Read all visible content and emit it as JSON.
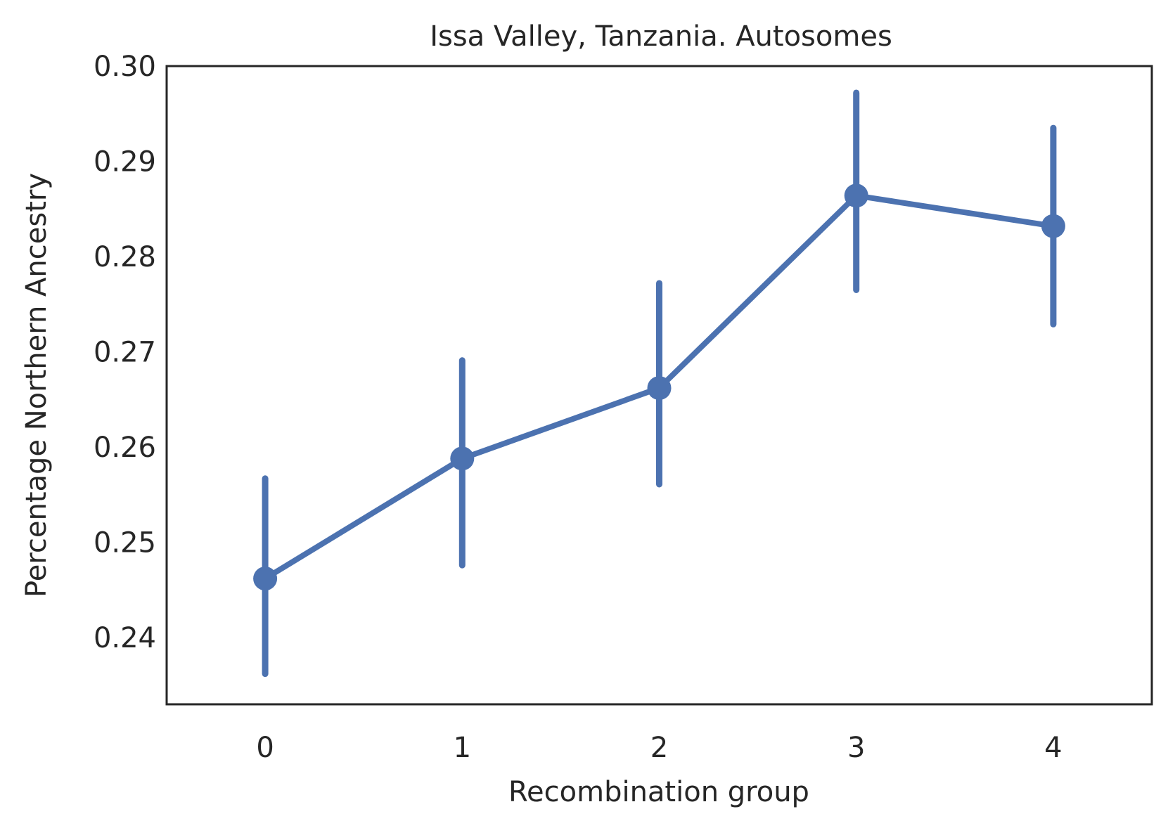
{
  "chart_data": {
    "type": "line",
    "title": "Issa Valley, Tanzania. Autosomes",
    "xlabel": "Recombination group",
    "ylabel": "Percentage Northern Ancestry",
    "categories": [
      "0",
      "1",
      "2",
      "3",
      "4"
    ],
    "y_ticks": [
      "0.24",
      "0.25",
      "0.26",
      "0.27",
      "0.28",
      "0.29",
      "0.30"
    ],
    "ylim": [
      0.233,
      0.3
    ],
    "series": [
      {
        "values": [
          0.2462,
          0.2588,
          0.2662,
          0.2864,
          0.2832
        ],
        "ci_low": [
          0.2362,
          0.2476,
          0.2561,
          0.2765,
          0.2729
        ],
        "ci_high": [
          0.2567,
          0.2691,
          0.2772,
          0.2972,
          0.2935
        ]
      }
    ],
    "grid": false,
    "legend": "none",
    "color": "#4c72b0",
    "axis_color": "#262626"
  }
}
